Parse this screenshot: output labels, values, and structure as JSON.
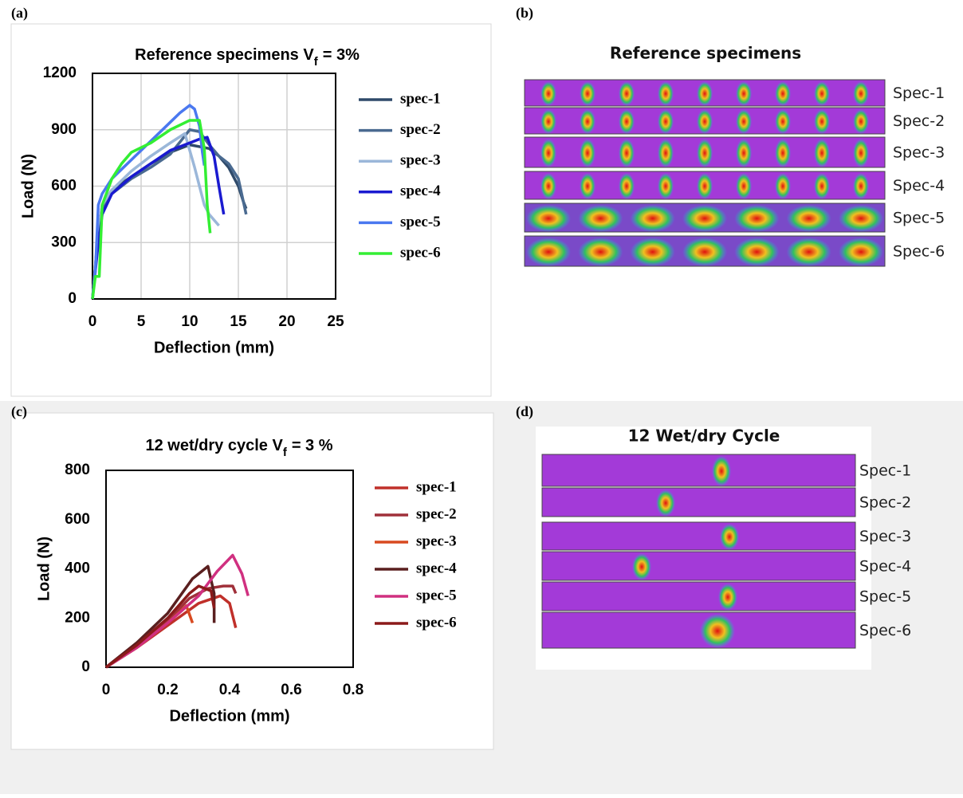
{
  "labels": [
    "(a)",
    "(b)",
    "(c)",
    "(d)"
  ],
  "images": [
    {
      "title": "Reference specimens",
      "specimens": [
        "Spec-1",
        "Spec-2",
        "Spec-3",
        "Spec-4",
        "Spec-5",
        "Spec-6"
      ]
    },
    {
      "title": "12 Wet/dry Cycle",
      "specimens": [
        "Spec-1",
        "Spec-2",
        "Spec-3",
        "Spec-4",
        "Spec-5",
        "Spec-6"
      ]
    }
  ],
  "chart_data": [
    {
      "type": "line",
      "title": "Reference specimens V",
      "title_subscript": "f",
      "title_suffix": "= 3%",
      "x_label": "Deflection (mm)",
      "y_label": "Load (N)",
      "xlim": [
        0,
        25
      ],
      "xticks": [
        0,
        5,
        10,
        15,
        20,
        25
      ],
      "ylim": [
        0,
        1200
      ],
      "yticks": [
        0,
        300,
        600,
        900,
        1200
      ],
      "grid": true,
      "legend": "right",
      "series": [
        {
          "name": "spec-1",
          "color": "#2f4a6a",
          "x": [
            0,
            0.5,
            1,
            2,
            4,
            6,
            8,
            10,
            12,
            13,
            14,
            15,
            15.5,
            15.8
          ],
          "values": [
            0,
            300,
            500,
            580,
            650,
            720,
            780,
            820,
            800,
            760,
            700,
            600,
            520,
            480
          ]
        },
        {
          "name": "spec-2",
          "color": "#4a6a90",
          "x": [
            0,
            0.5,
            1,
            2,
            4,
            6,
            8,
            10,
            11,
            12,
            13,
            14,
            15,
            15.8
          ],
          "values": [
            0,
            280,
            480,
            560,
            640,
            700,
            770,
            900,
            890,
            820,
            760,
            720,
            640,
            450
          ]
        },
        {
          "name": "spec-3",
          "color": "#9bb7d9",
          "x": [
            0,
            0.5,
            1,
            2,
            4,
            6,
            8,
            9.5,
            10.5,
            11,
            11.5,
            12,
            13
          ],
          "values": [
            0,
            300,
            500,
            580,
            680,
            760,
            830,
            880,
            700,
            600,
            500,
            450,
            390
          ]
        },
        {
          "name": "spec-4",
          "color": "#1a1ad0",
          "x": [
            0,
            0.5,
            1,
            2,
            4,
            6,
            8,
            10,
            11,
            11.8,
            12.5,
            13,
            13.5
          ],
          "values": [
            0,
            250,
            450,
            560,
            650,
            720,
            790,
            830,
            850,
            860,
            760,
            600,
            450
          ]
        },
        {
          "name": "spec-5",
          "color": "#4a78f0",
          "x": [
            0,
            0.3,
            0.6,
            1,
            2,
            4,
            6,
            8,
            9,
            10,
            10.5,
            11,
            11.3,
            11.5
          ],
          "values": [
            0,
            150,
            500,
            560,
            640,
            740,
            840,
            940,
            990,
            1030,
            1010,
            920,
            780,
            710
          ]
        },
        {
          "name": "spec-6",
          "color": "#33ee33",
          "x": [
            0,
            0.3,
            0.7,
            1,
            2,
            3,
            4,
            6,
            8,
            10,
            11,
            11.5,
            11.8,
            12.1
          ],
          "values": [
            0,
            120,
            120,
            500,
            640,
            720,
            780,
            830,
            900,
            950,
            950,
            800,
            500,
            350
          ]
        }
      ]
    },
    {
      "type": "line",
      "title": "12 wet/dry cycle V",
      "title_subscript": "f",
      "title_suffix": "= 3 %",
      "x_label": "Deflection (mm)",
      "y_label": "Load (N)",
      "xlim": [
        0,
        0.8
      ],
      "xticks": [
        0,
        0.2,
        0.4,
        0.6,
        0.8
      ],
      "ylim": [
        0,
        800
      ],
      "yticks": [
        0,
        200,
        400,
        600,
        800
      ],
      "grid": false,
      "legend": "right",
      "series": [
        {
          "name": "spec-1",
          "color": "#c0302a",
          "x": [
            0,
            0.1,
            0.2,
            0.3,
            0.37,
            0.4,
            0.42
          ],
          "values": [
            0,
            80,
            170,
            260,
            290,
            260,
            160
          ]
        },
        {
          "name": "spec-2",
          "color": "#a0303a",
          "x": [
            0,
            0.1,
            0.2,
            0.27,
            0.33,
            0.38,
            0.41,
            0.42
          ],
          "values": [
            0,
            90,
            190,
            280,
            320,
            330,
            330,
            300
          ]
        },
        {
          "name": "spec-3",
          "color": "#d84a20",
          "x": [
            0,
            0.1,
            0.2,
            0.26,
            0.28
          ],
          "values": [
            0,
            80,
            180,
            250,
            180
          ]
        },
        {
          "name": "spec-4",
          "color": "#5a1f1f",
          "x": [
            0,
            0.1,
            0.2,
            0.28,
            0.33,
            0.35,
            0.35
          ],
          "values": [
            0,
            100,
            220,
            360,
            410,
            300,
            180
          ]
        },
        {
          "name": "spec-5",
          "color": "#d03080",
          "x": [
            0,
            0.1,
            0.2,
            0.3,
            0.36,
            0.41,
            0.44,
            0.46
          ],
          "values": [
            0,
            80,
            180,
            290,
            390,
            455,
            380,
            290
          ]
        },
        {
          "name": "spec-6",
          "color": "#8b1a1a",
          "x": [
            0,
            0.1,
            0.2,
            0.27,
            0.3,
            0.34,
            0.35
          ],
          "values": [
            0,
            90,
            200,
            300,
            330,
            310,
            240
          ]
        }
      ]
    }
  ]
}
